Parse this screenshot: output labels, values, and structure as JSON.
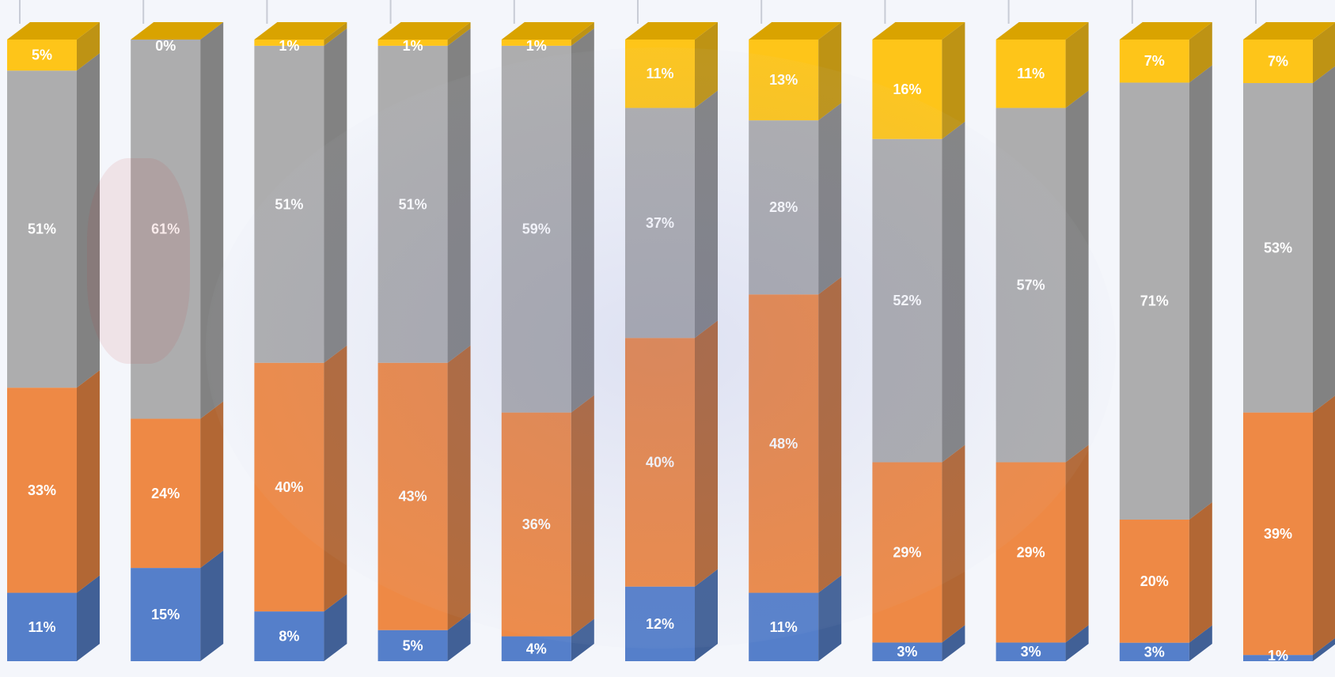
{
  "chart_data": {
    "type": "bar",
    "stacked": true,
    "three_d": true,
    "categories": [
      "",
      "",
      "",
      "",
      "",
      "",
      "",
      "",
      "",
      "",
      ""
    ],
    "ylim": [
      0,
      100
    ],
    "grid": false,
    "legend": "none",
    "series": [
      {
        "color": "#4472c4",
        "values": [
          11,
          15,
          8,
          5,
          4,
          12,
          11,
          3,
          3,
          3,
          1
        ],
        "labels": [
          "11%",
          "15%",
          "8%",
          "5%",
          "4%",
          "12%",
          "11%",
          "3%",
          "3%",
          "3%",
          "1%"
        ]
      },
      {
        "color": "#ed7d31",
        "values": [
          33,
          24,
          40,
          43,
          36,
          40,
          48,
          29,
          29,
          20,
          39
        ],
        "labels": [
          "33%",
          "24%",
          "40%",
          "43%",
          "36%",
          "40%",
          "48%",
          "29%",
          "29%",
          "20%",
          "39%"
        ]
      },
      {
        "color": "#a5a5a5",
        "values": [
          51,
          61,
          51,
          51,
          59,
          37,
          28,
          52,
          57,
          71,
          53
        ],
        "labels": [
          "51%",
          "61%",
          "51%",
          "51%",
          "59%",
          "37%",
          "28%",
          "52%",
          "57%",
          "71%",
          "53%"
        ]
      },
      {
        "color": "#ffc000",
        "values": [
          5,
          0,
          1,
          1,
          1,
          11,
          13,
          16,
          11,
          7,
          7
        ],
        "labels": [
          "5%",
          "0%",
          "1%",
          "1%",
          "1%",
          "11%",
          "13%",
          "16%",
          "11%",
          "7%",
          "7%"
        ]
      }
    ]
  },
  "style": {
    "background": "#f4f6fb",
    "label_color": "#ffffff"
  }
}
